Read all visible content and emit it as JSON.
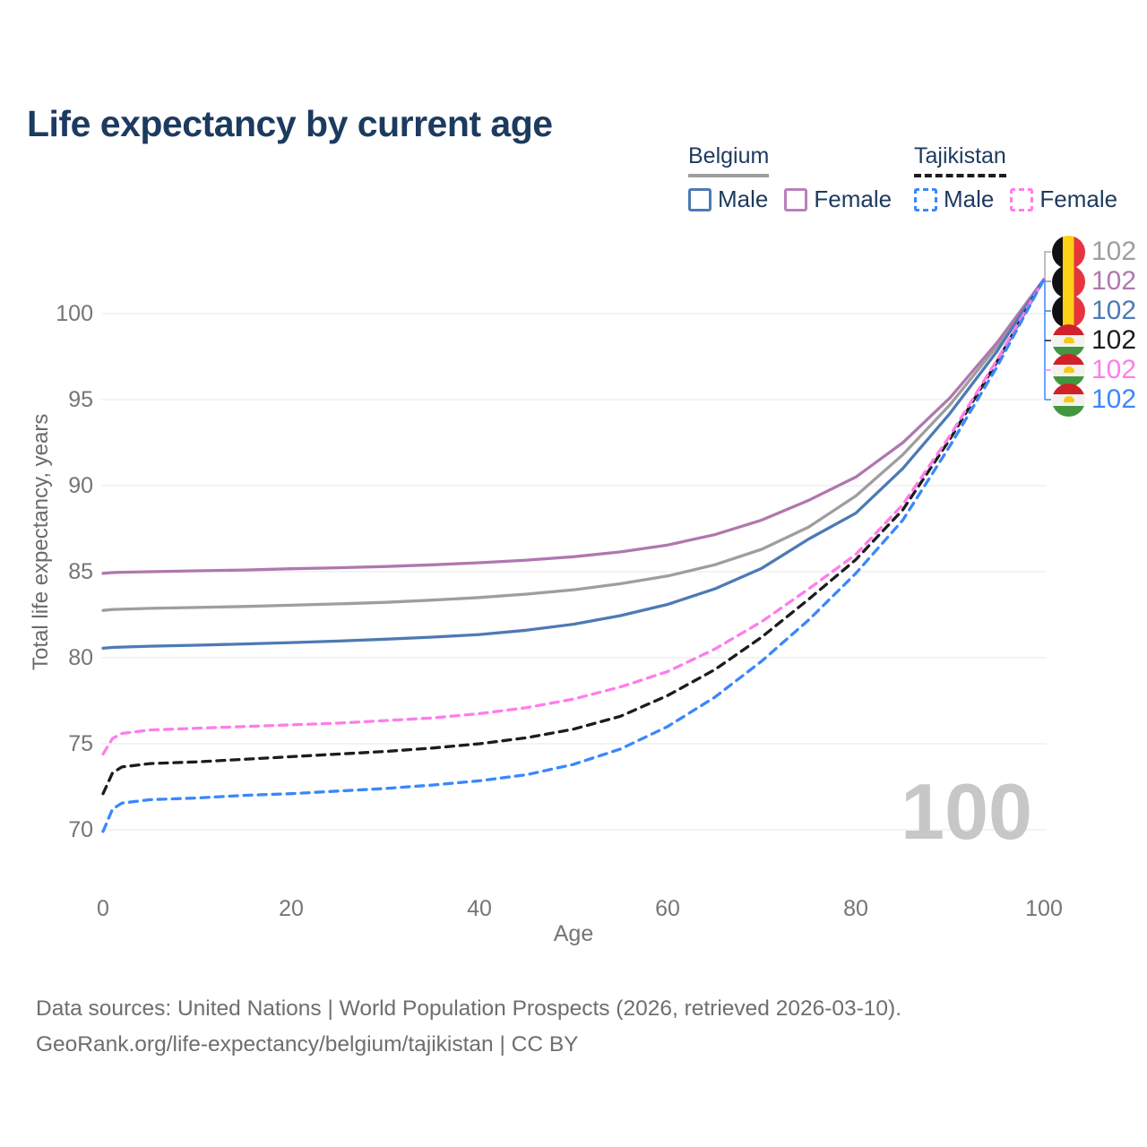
{
  "title": "Life expectancy by current age",
  "watermark": "100",
  "legend": {
    "groups": [
      {
        "name": "Belgium",
        "line_style": "solid",
        "underline_color": "#9e9e9e",
        "items": [
          {
            "label": "Male",
            "color": "#4d7ab5",
            "dashed": false
          },
          {
            "label": "Female",
            "color": "#bb7fbb",
            "dashed": false
          }
        ]
      },
      {
        "name": "Tajikistan",
        "line_style": "dashed",
        "underline_color": "#1c1c1c",
        "items": [
          {
            "label": "Male",
            "color": "#3a87fd",
            "dashed": true
          },
          {
            "label": "Female",
            "color": "#ff7de9",
            "dashed": true
          }
        ]
      }
    ]
  },
  "footer": {
    "line1": "Data sources: United Nations | World Population Prospects (2026, retrieved 2026-03-10).",
    "line2": "GeoRank.org/life-expectancy/belgium/tajikistan | CC BY"
  },
  "chart_data": {
    "type": "line",
    "title": "Life expectancy by current age",
    "xlabel": "Age",
    "ylabel": "Total life expectancy, years",
    "xlim": [
      0,
      100
    ],
    "ylim": [
      68.5,
      102.5
    ],
    "xticks": [
      0,
      20,
      40,
      60,
      80,
      100
    ],
    "yticks": [
      70,
      75,
      80,
      85,
      90,
      95,
      100
    ],
    "grid": true,
    "legend_position": "top-right",
    "x": [
      0,
      1,
      2,
      5,
      10,
      15,
      20,
      25,
      30,
      35,
      40,
      45,
      50,
      55,
      60,
      65,
      70,
      75,
      80,
      85,
      90,
      95,
      100
    ],
    "series": [
      {
        "name": "Belgium (total)",
        "flag": "belgium",
        "color": "#9e9e9e",
        "dash": false,
        "end_label": "102",
        "values": [
          82.75,
          82.8,
          82.82,
          82.87,
          82.92,
          82.98,
          83.05,
          83.13,
          83.22,
          83.35,
          83.5,
          83.7,
          83.95,
          84.3,
          84.75,
          85.4,
          86.3,
          87.6,
          89.4,
          91.8,
          94.7,
          98.1,
          102
        ]
      },
      {
        "name": "Belgium Female",
        "flag": "belgium",
        "color": "#b077af",
        "dash": false,
        "end_label": "102",
        "values": [
          84.9,
          84.95,
          84.97,
          85.0,
          85.05,
          85.1,
          85.17,
          85.23,
          85.3,
          85.4,
          85.52,
          85.67,
          85.87,
          86.15,
          86.55,
          87.15,
          88.0,
          89.15,
          90.5,
          92.5,
          95.1,
          98.3,
          102
        ]
      },
      {
        "name": "Belgium Male",
        "flag": "belgium",
        "color": "#4d7ab5",
        "dash": false,
        "end_label": "102",
        "values": [
          80.55,
          80.6,
          80.62,
          80.67,
          80.73,
          80.8,
          80.88,
          80.97,
          81.08,
          81.2,
          81.35,
          81.6,
          81.95,
          82.45,
          83.1,
          84.0,
          85.2,
          86.9,
          88.4,
          91.0,
          94.2,
          97.8,
          102
        ]
      },
      {
        "name": "Tajikistan (total)",
        "flag": "tajikistan",
        "color": "#1c1c1c",
        "dash": true,
        "end_label": "102",
        "values": [
          72.1,
          73.3,
          73.65,
          73.85,
          73.95,
          74.1,
          74.25,
          74.4,
          74.55,
          74.75,
          75.0,
          75.35,
          75.85,
          76.6,
          77.8,
          79.3,
          81.2,
          83.4,
          85.7,
          88.6,
          92.7,
          97.2,
          102
        ]
      },
      {
        "name": "Tajikistan Female",
        "flag": "tajikistan",
        "color": "#ff7de9",
        "dash": true,
        "end_label": "102",
        "values": [
          74.4,
          75.3,
          75.6,
          75.8,
          75.9,
          76.0,
          76.1,
          76.2,
          76.35,
          76.5,
          76.75,
          77.1,
          77.6,
          78.3,
          79.2,
          80.5,
          82.1,
          84.0,
          86.0,
          88.9,
          92.9,
          97.3,
          102
        ]
      },
      {
        "name": "Tajikistan Male",
        "flag": "tajikistan",
        "color": "#3a87fd",
        "dash": true,
        "end_label": "102",
        "values": [
          69.9,
          71.2,
          71.55,
          71.75,
          71.85,
          72.0,
          72.1,
          72.25,
          72.4,
          72.6,
          72.85,
          73.2,
          73.8,
          74.7,
          76.0,
          77.7,
          79.8,
          82.2,
          84.9,
          88.0,
          92.3,
          96.9,
          102
        ]
      }
    ]
  }
}
